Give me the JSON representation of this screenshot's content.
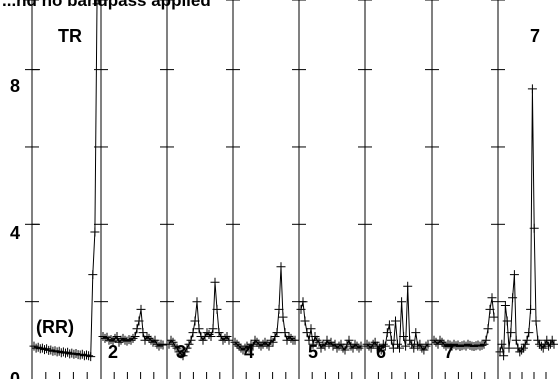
{
  "chart_data": {
    "type": "line",
    "title": "...nd no bandpass applied",
    "xlabel": "",
    "ylabel": "",
    "ylim": [
      0,
      9.8
    ],
    "yticks": [
      0,
      4,
      8
    ],
    "grid": true,
    "panel_labels": [
      "TR",
      "(RR)",
      "2",
      "3",
      "4",
      "5",
      "6",
      "7",
      "7"
    ],
    "marker": "+",
    "line_color": "#000000",
    "panels": [
      {
        "name": "TR",
        "values": [
          0.85,
          0.8,
          0.82,
          0.78,
          0.8,
          0.76,
          0.78,
          0.74,
          0.75,
          0.72,
          0.73,
          0.7,
          0.72,
          0.68,
          0.7,
          0.67,
          0.69,
          0.65,
          0.67,
          0.64,
          0.66,
          0.63,
          0.62,
          0.64,
          0.6,
          0.62,
          0.6,
          0.58,
          2.7,
          3.8,
          9.7
        ]
      },
      {
        "name": "2",
        "values": [
          1.1,
          1.05,
          1.08,
          1.0,
          1.02,
          0.98,
          1.05,
          1.1,
          0.95,
          1.0,
          1.05,
          1.0,
          0.98,
          1.02,
          1.0,
          1.05,
          1.1,
          1.3,
          1.5,
          1.8,
          1.2,
          1.0,
          1.1,
          1.05,
          1.0,
          0.95,
          1.0,
          0.9,
          0.85,
          0.9,
          0.88
        ]
      },
      {
        "name": "3",
        "values": [
          0.9,
          1.0,
          0.95,
          0.85,
          0.8,
          0.7,
          0.65,
          0.6,
          0.7,
          0.8,
          0.9,
          1.0,
          1.2,
          1.5,
          2.0,
          1.3,
          1.1,
          1.0,
          1.1,
          1.2,
          1.15,
          1.1,
          1.3,
          2.5,
          1.8,
          1.2,
          1.1,
          1.0,
          1.05,
          1.1,
          1.0
        ]
      },
      {
        "name": "4",
        "values": [
          0.95,
          0.9,
          0.85,
          0.8,
          0.75,
          0.8,
          0.85,
          0.8,
          0.9,
          0.85,
          1.0,
          0.95,
          0.9,
          0.85,
          0.9,
          0.95,
          0.9,
          0.85,
          1.0,
          0.95,
          1.1,
          1.2,
          1.8,
          2.9,
          1.6,
          1.2,
          1.0,
          1.1,
          1.05,
          1.0,
          1.0
        ]
      },
      {
        "name": "5",
        "values": [
          1.8,
          2.0,
          1.5,
          1.2,
          1.0,
          1.3,
          0.9,
          1.1,
          1.0,
          0.95,
          0.8,
          0.9,
          0.85,
          1.0,
          0.9,
          0.95,
          0.85,
          0.9,
          0.8,
          0.85,
          0.9,
          0.8,
          0.75,
          0.9,
          1.0,
          0.85,
          0.8,
          0.9,
          0.85,
          0.8,
          0.85
        ]
      },
      {
        "name": "6",
        "values": [
          0.9,
          0.85,
          0.8,
          0.9,
          0.95,
          0.85,
          0.8,
          0.75,
          0.9,
          0.85,
          1.2,
          1.4,
          1.0,
          0.8,
          1.5,
          0.9,
          0.8,
          2.0,
          1.1,
          0.85,
          2.4,
          1.0,
          0.9,
          0.8,
          1.2,
          0.85,
          0.9,
          0.8,
          0.75,
          0.85,
          0.9
        ]
      },
      {
        "name": "7",
        "values": [
          1.0,
          0.95,
          0.9,
          1.0,
          0.95,
          0.9,
          0.85,
          0.9,
          0.88,
          0.85,
          0.9,
          0.86,
          0.88,
          0.84,
          0.86,
          0.88,
          0.85,
          0.9,
          0.87,
          0.85,
          0.84,
          0.86,
          0.88,
          0.85,
          0.87,
          0.9,
          1.0,
          1.3,
          1.8,
          2.1,
          1.6
        ]
      },
      {
        "name": "7",
        "values": [
          0.7,
          0.9,
          0.6,
          1.9,
          1.5,
          0.8,
          1.2,
          2.1,
          2.7,
          1.0,
          0.8,
          0.7,
          0.75,
          0.8,
          0.9,
          1.0,
          1.2,
          1.8,
          7.5,
          3.9,
          1.5,
          1.0,
          0.9,
          0.85,
          0.8,
          0.9,
          1.0,
          0.85,
          0.9,
          1.0,
          0.9
        ]
      }
    ]
  }
}
